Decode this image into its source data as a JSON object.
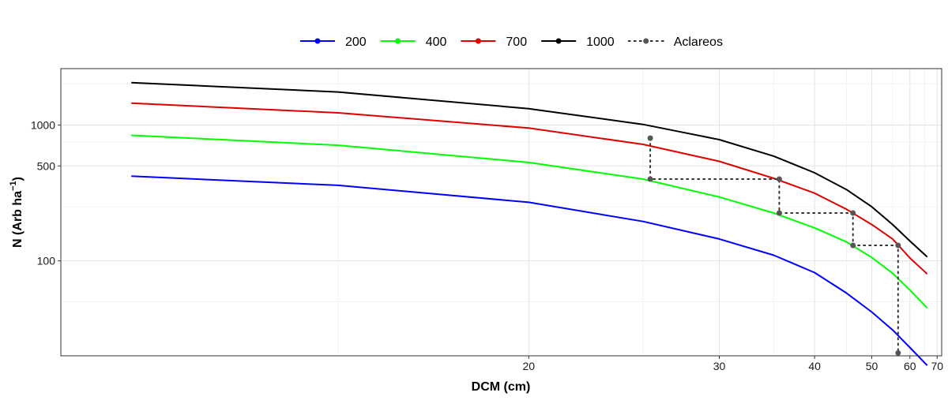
{
  "chart_data": {
    "type": "line",
    "xlabel": "DCM (cm)",
    "ylabel_main": "N (Arb ha",
    "ylabel_sup": "−1",
    "ylabel_close": ")",
    "x_scale": "reciprocal",
    "y_scale": "log10",
    "xlim": [
      11,
      72
    ],
    "ylim": [
      20,
      2600
    ],
    "x_ticks": [
      20,
      30,
      40,
      50,
      60,
      70
    ],
    "x_tick_labels": [
      "20",
      "30",
      "40",
      "50",
      "60",
      "70"
    ],
    "y_ticks": [
      100,
      500,
      1000
    ],
    "y_tick_labels": [
      "100",
      "500",
      "1000"
    ],
    "grid": true,
    "legend_position": "top",
    "series": [
      {
        "name": "200",
        "color": "#0000ff",
        "points": [
          [
            11.8,
            420
          ],
          [
            15,
            360
          ],
          [
            20,
            270
          ],
          [
            25,
            195
          ],
          [
            30,
            145
          ],
          [
            35,
            110
          ],
          [
            40,
            82
          ],
          [
            45,
            58
          ],
          [
            50,
            42
          ],
          [
            55,
            31
          ],
          [
            60,
            23
          ],
          [
            66,
            17
          ]
        ]
      },
      {
        "name": "400",
        "color": "#00ff00",
        "points": [
          [
            11.8,
            840
          ],
          [
            15,
            710
          ],
          [
            20,
            530
          ],
          [
            25,
            400
          ],
          [
            30,
            295
          ],
          [
            35,
            225
          ],
          [
            40,
            175
          ],
          [
            45,
            138
          ],
          [
            50,
            106
          ],
          [
            55,
            81
          ],
          [
            60,
            61
          ],
          [
            66,
            45
          ]
        ]
      },
      {
        "name": "700",
        "color": "#e00000",
        "points": [
          [
            11.8,
            1450
          ],
          [
            15,
            1230
          ],
          [
            20,
            950
          ],
          [
            25,
            720
          ],
          [
            30,
            540
          ],
          [
            35,
            405
          ],
          [
            40,
            315
          ],
          [
            45,
            240
          ],
          [
            50,
            185
          ],
          [
            55,
            145
          ],
          [
            60,
            105
          ],
          [
            66,
            80
          ]
        ]
      },
      {
        "name": "1000",
        "color": "#000000",
        "points": [
          [
            11.8,
            2050
          ],
          [
            15,
            1750
          ],
          [
            20,
            1320
          ],
          [
            25,
            1010
          ],
          [
            30,
            780
          ],
          [
            35,
            590
          ],
          [
            40,
            445
          ],
          [
            45,
            335
          ],
          [
            50,
            250
          ],
          [
            55,
            185
          ],
          [
            60,
            140
          ],
          [
            66,
            107
          ]
        ]
      }
    ],
    "thinning": {
      "name": "Aclareos",
      "color": "#555555",
      "points": [
        [
          25.4,
          800
        ],
        [
          25.4,
          400
        ],
        [
          35.6,
          400
        ],
        [
          35.6,
          225
        ],
        [
          46.2,
          225
        ],
        [
          46.2,
          130
        ],
        [
          56.5,
          130
        ],
        [
          56.5,
          21
        ]
      ]
    }
  }
}
